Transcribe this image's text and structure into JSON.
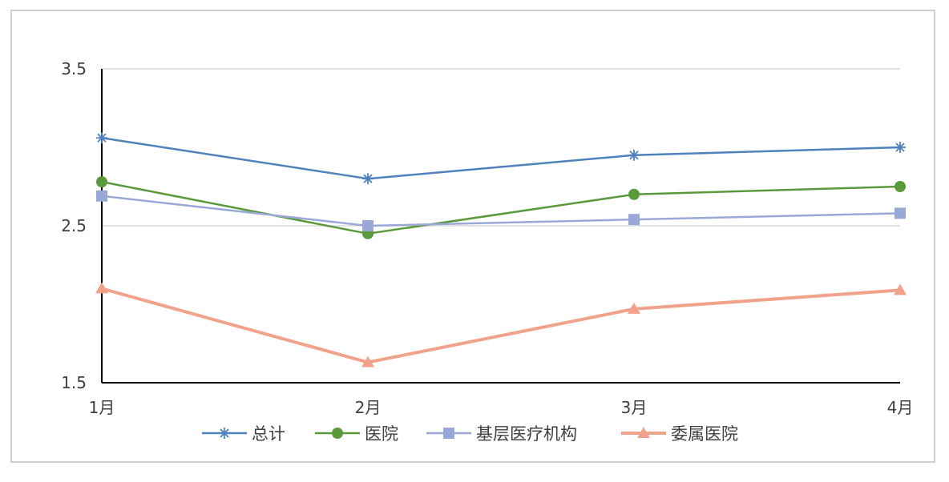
{
  "chart_data": {
    "type": "line",
    "title": "",
    "xlabel": "",
    "ylabel": "",
    "categories": [
      "1月",
      "2月",
      "3月",
      "4月"
    ],
    "ylim": [
      1.5,
      3.5
    ],
    "yticks": [
      "1.5",
      "2.5",
      "3.5"
    ],
    "ytick_values": [
      1.5,
      2.5,
      3.5
    ],
    "grid": true,
    "legend_position": "bottom",
    "series": [
      {
        "name": "总计",
        "values": [
          3.06,
          2.8,
          2.95,
          3.0
        ],
        "color": "#4f81bd",
        "marker": "star"
      },
      {
        "name": "医院",
        "values": [
          2.78,
          2.45,
          2.7,
          2.75
        ],
        "color": "#5b9a3c",
        "marker": "circle"
      },
      {
        "name": "基层医疗机构",
        "values": [
          2.69,
          2.5,
          2.54,
          2.58
        ],
        "color": "#9aa8d8",
        "marker": "square"
      },
      {
        "name": "委属医院",
        "values": [
          2.1,
          1.63,
          1.97,
          2.09
        ],
        "color": "#f0a38a",
        "marker": "triangle"
      }
    ]
  }
}
